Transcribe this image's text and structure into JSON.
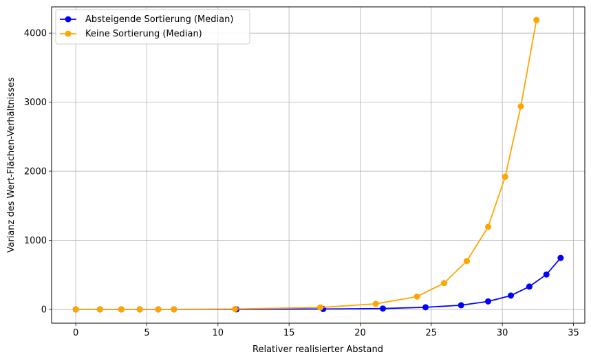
{
  "chart_data": {
    "type": "line",
    "title": "",
    "xlabel": "Relativer realisierter Abstand",
    "ylabel": "Varianz des Wert-Flächen-Verhältnisses",
    "xlim": [
      -1.7,
      35.8
    ],
    "ylim": [
      -200,
      4380
    ],
    "xticks": [
      0,
      5,
      10,
      15,
      20,
      25,
      30,
      35
    ],
    "yticks": [
      0,
      1000,
      2000,
      3000,
      4000
    ],
    "grid": true,
    "legend_position": "top-left",
    "series": [
      {
        "name": "Absteigende Sortierung (Median)",
        "color": "#0000ff",
        "points": [
          [
            0,
            0
          ],
          [
            1.7,
            0
          ],
          [
            3.2,
            0
          ],
          [
            4.5,
            0
          ],
          [
            5.8,
            0
          ],
          [
            6.9,
            0
          ],
          [
            11.3,
            0
          ],
          [
            17.4,
            5
          ],
          [
            21.6,
            12
          ],
          [
            24.6,
            30
          ],
          [
            27.1,
            60
          ],
          [
            29.0,
            115
          ],
          [
            30.6,
            200
          ],
          [
            31.9,
            330
          ],
          [
            33.1,
            505
          ],
          [
            34.1,
            745
          ]
        ]
      },
      {
        "name": "Keine Sortierung (Median)",
        "color": "#ffa500",
        "points": [
          [
            0,
            0
          ],
          [
            1.7,
            0
          ],
          [
            3.2,
            0
          ],
          [
            4.5,
            0
          ],
          [
            5.8,
            0
          ],
          [
            6.9,
            0
          ],
          [
            11.2,
            5
          ],
          [
            17.2,
            28
          ],
          [
            21.1,
            80
          ],
          [
            24.0,
            185
          ],
          [
            25.9,
            380
          ],
          [
            27.5,
            700
          ],
          [
            29.0,
            1195
          ],
          [
            30.2,
            1920
          ],
          [
            31.3,
            2940
          ],
          [
            32.4,
            4190
          ]
        ]
      }
    ]
  }
}
